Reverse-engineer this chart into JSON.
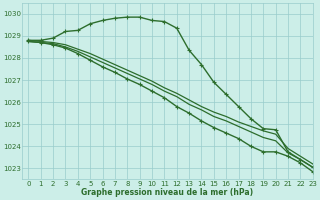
{
  "background_color": "#cceee8",
  "grid_color": "#99cccc",
  "line_color": "#2d6e2d",
  "xlabel": "Graphe pression niveau de la mer (hPa)",
  "xlim": [
    -0.5,
    23
  ],
  "ylim": [
    1022.5,
    1030.5
  ],
  "yticks": [
    1023,
    1024,
    1025,
    1026,
    1027,
    1028,
    1029,
    1030
  ],
  "xticks": [
    0,
    1,
    2,
    3,
    4,
    5,
    6,
    7,
    8,
    9,
    10,
    11,
    12,
    13,
    14,
    15,
    16,
    17,
    18,
    19,
    20,
    21,
    22,
    23
  ],
  "series": [
    {
      "x": [
        0,
        1,
        2,
        3,
        4,
        5,
        6,
        7,
        8,
        9,
        10,
        11,
        12,
        13,
        14,
        15,
        16,
        17,
        18,
        19,
        20,
        21,
        22,
        23
      ],
      "y": [
        1028.8,
        1028.8,
        1028.9,
        1029.2,
        1029.25,
        1029.55,
        1029.7,
        1029.8,
        1029.85,
        1029.85,
        1029.7,
        1029.65,
        1029.35,
        1028.35,
        1027.7,
        1026.9,
        1026.35,
        1025.8,
        1025.25,
        1024.8,
        1024.75,
        1023.75,
        1023.4,
        1023.05
      ],
      "marker": true,
      "linewidth": 1.0
    },
    {
      "x": [
        0,
        1,
        2,
        3,
        4,
        5,
        6,
        7,
        8,
        9,
        10,
        11,
        12,
        13,
        14,
        15,
        16,
        17,
        18,
        19,
        20,
        21,
        22,
        23
      ],
      "y": [
        1028.8,
        1028.75,
        1028.7,
        1028.6,
        1028.4,
        1028.2,
        1027.95,
        1027.7,
        1027.45,
        1027.2,
        1026.95,
        1026.65,
        1026.4,
        1026.1,
        1025.8,
        1025.55,
        1025.35,
        1025.1,
        1024.9,
        1024.7,
        1024.55,
        1023.9,
        1023.55,
        1023.2
      ],
      "marker": false,
      "linewidth": 0.9
    },
    {
      "x": [
        0,
        1,
        2,
        3,
        4,
        5,
        6,
        7,
        8,
        9,
        10,
        11,
        12,
        13,
        14,
        15,
        16,
        17,
        18,
        19,
        20,
        21,
        22,
        23
      ],
      "y": [
        1028.75,
        1028.7,
        1028.65,
        1028.5,
        1028.3,
        1028.05,
        1027.8,
        1027.55,
        1027.3,
        1027.05,
        1026.8,
        1026.5,
        1026.25,
        1025.9,
        1025.65,
        1025.35,
        1025.15,
        1024.9,
        1024.65,
        1024.4,
        1024.25,
        1023.7,
        1023.4,
        1023.05
      ],
      "marker": false,
      "linewidth": 0.9
    },
    {
      "x": [
        0,
        1,
        2,
        3,
        4,
        5,
        6,
        7,
        8,
        9,
        10,
        11,
        12,
        13,
        14,
        15,
        16,
        17,
        18,
        19,
        20,
        21,
        22,
        23
      ],
      "y": [
        1028.75,
        1028.7,
        1028.6,
        1028.45,
        1028.2,
        1027.9,
        1027.6,
        1027.35,
        1027.05,
        1026.8,
        1026.5,
        1026.2,
        1025.8,
        1025.5,
        1025.15,
        1024.85,
        1024.6,
        1024.35,
        1024.0,
        1023.75,
        1023.75,
        1023.55,
        1023.25,
        1022.85
      ],
      "marker": true,
      "linewidth": 1.0
    }
  ]
}
